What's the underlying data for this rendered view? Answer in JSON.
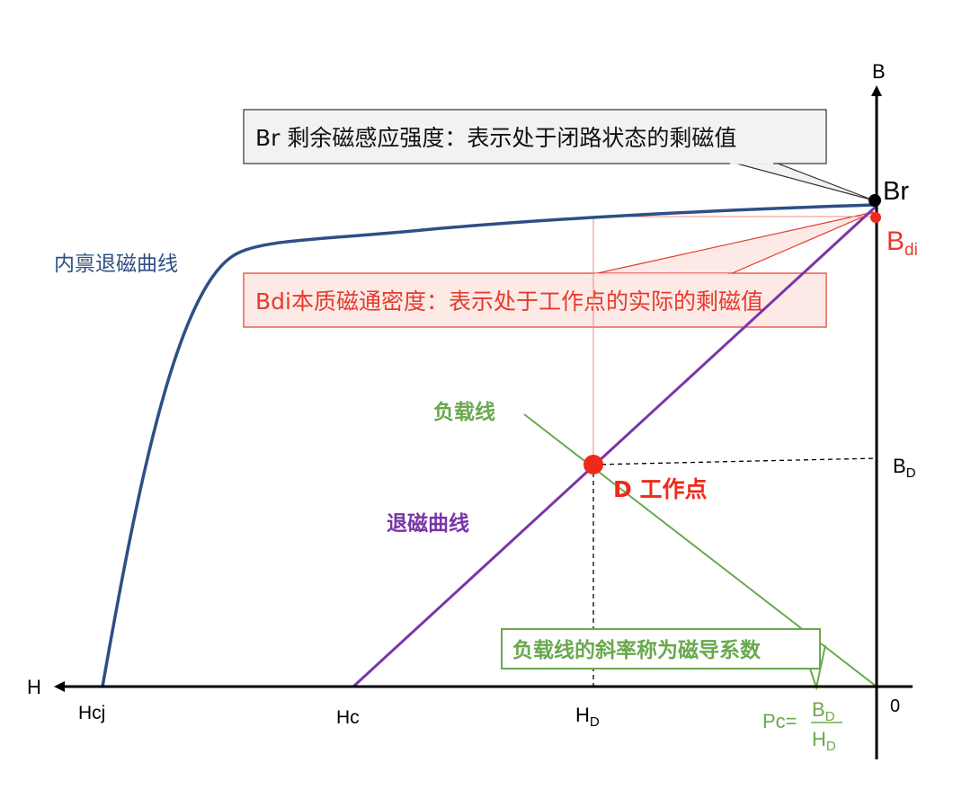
{
  "axes": {
    "h_label": "H",
    "b_label": "B",
    "origin_label": "0"
  },
  "points": {
    "br": "Br",
    "bdi_main": "B",
    "bdi_sub": "di",
    "bd_main": "B",
    "bd_sub": "D",
    "hcj": "Hcj",
    "hc": "Hc",
    "hd_main": "H",
    "hd_sub": "D"
  },
  "curves": {
    "intrinsic_label": "内禀退磁曲线",
    "demag_label": "退磁曲线",
    "load_line_label": "负载线"
  },
  "working_point": {
    "label": "D 工作点"
  },
  "callouts": {
    "br_text": "Br 剩余磁感应强度：表示处于闭路状态的剩磁值",
    "bdi_text": "Bdi本质磁通密度：表示处于工作点的实际的剩磁值",
    "slope_text": "负载线的斜率称为磁导系数"
  },
  "formula": {
    "prefix": "Pc=",
    "num_main": "B",
    "num_sub": "D",
    "den_main": "H",
    "den_sub": "D"
  },
  "colors": {
    "intrinsic_curve": "#2e4f85",
    "demag_curve": "#7a35a8",
    "load_line": "#6aa84f",
    "working_point": "#ee2a1a",
    "bdi_callout": "#e53b2c",
    "axis": "#000000"
  }
}
